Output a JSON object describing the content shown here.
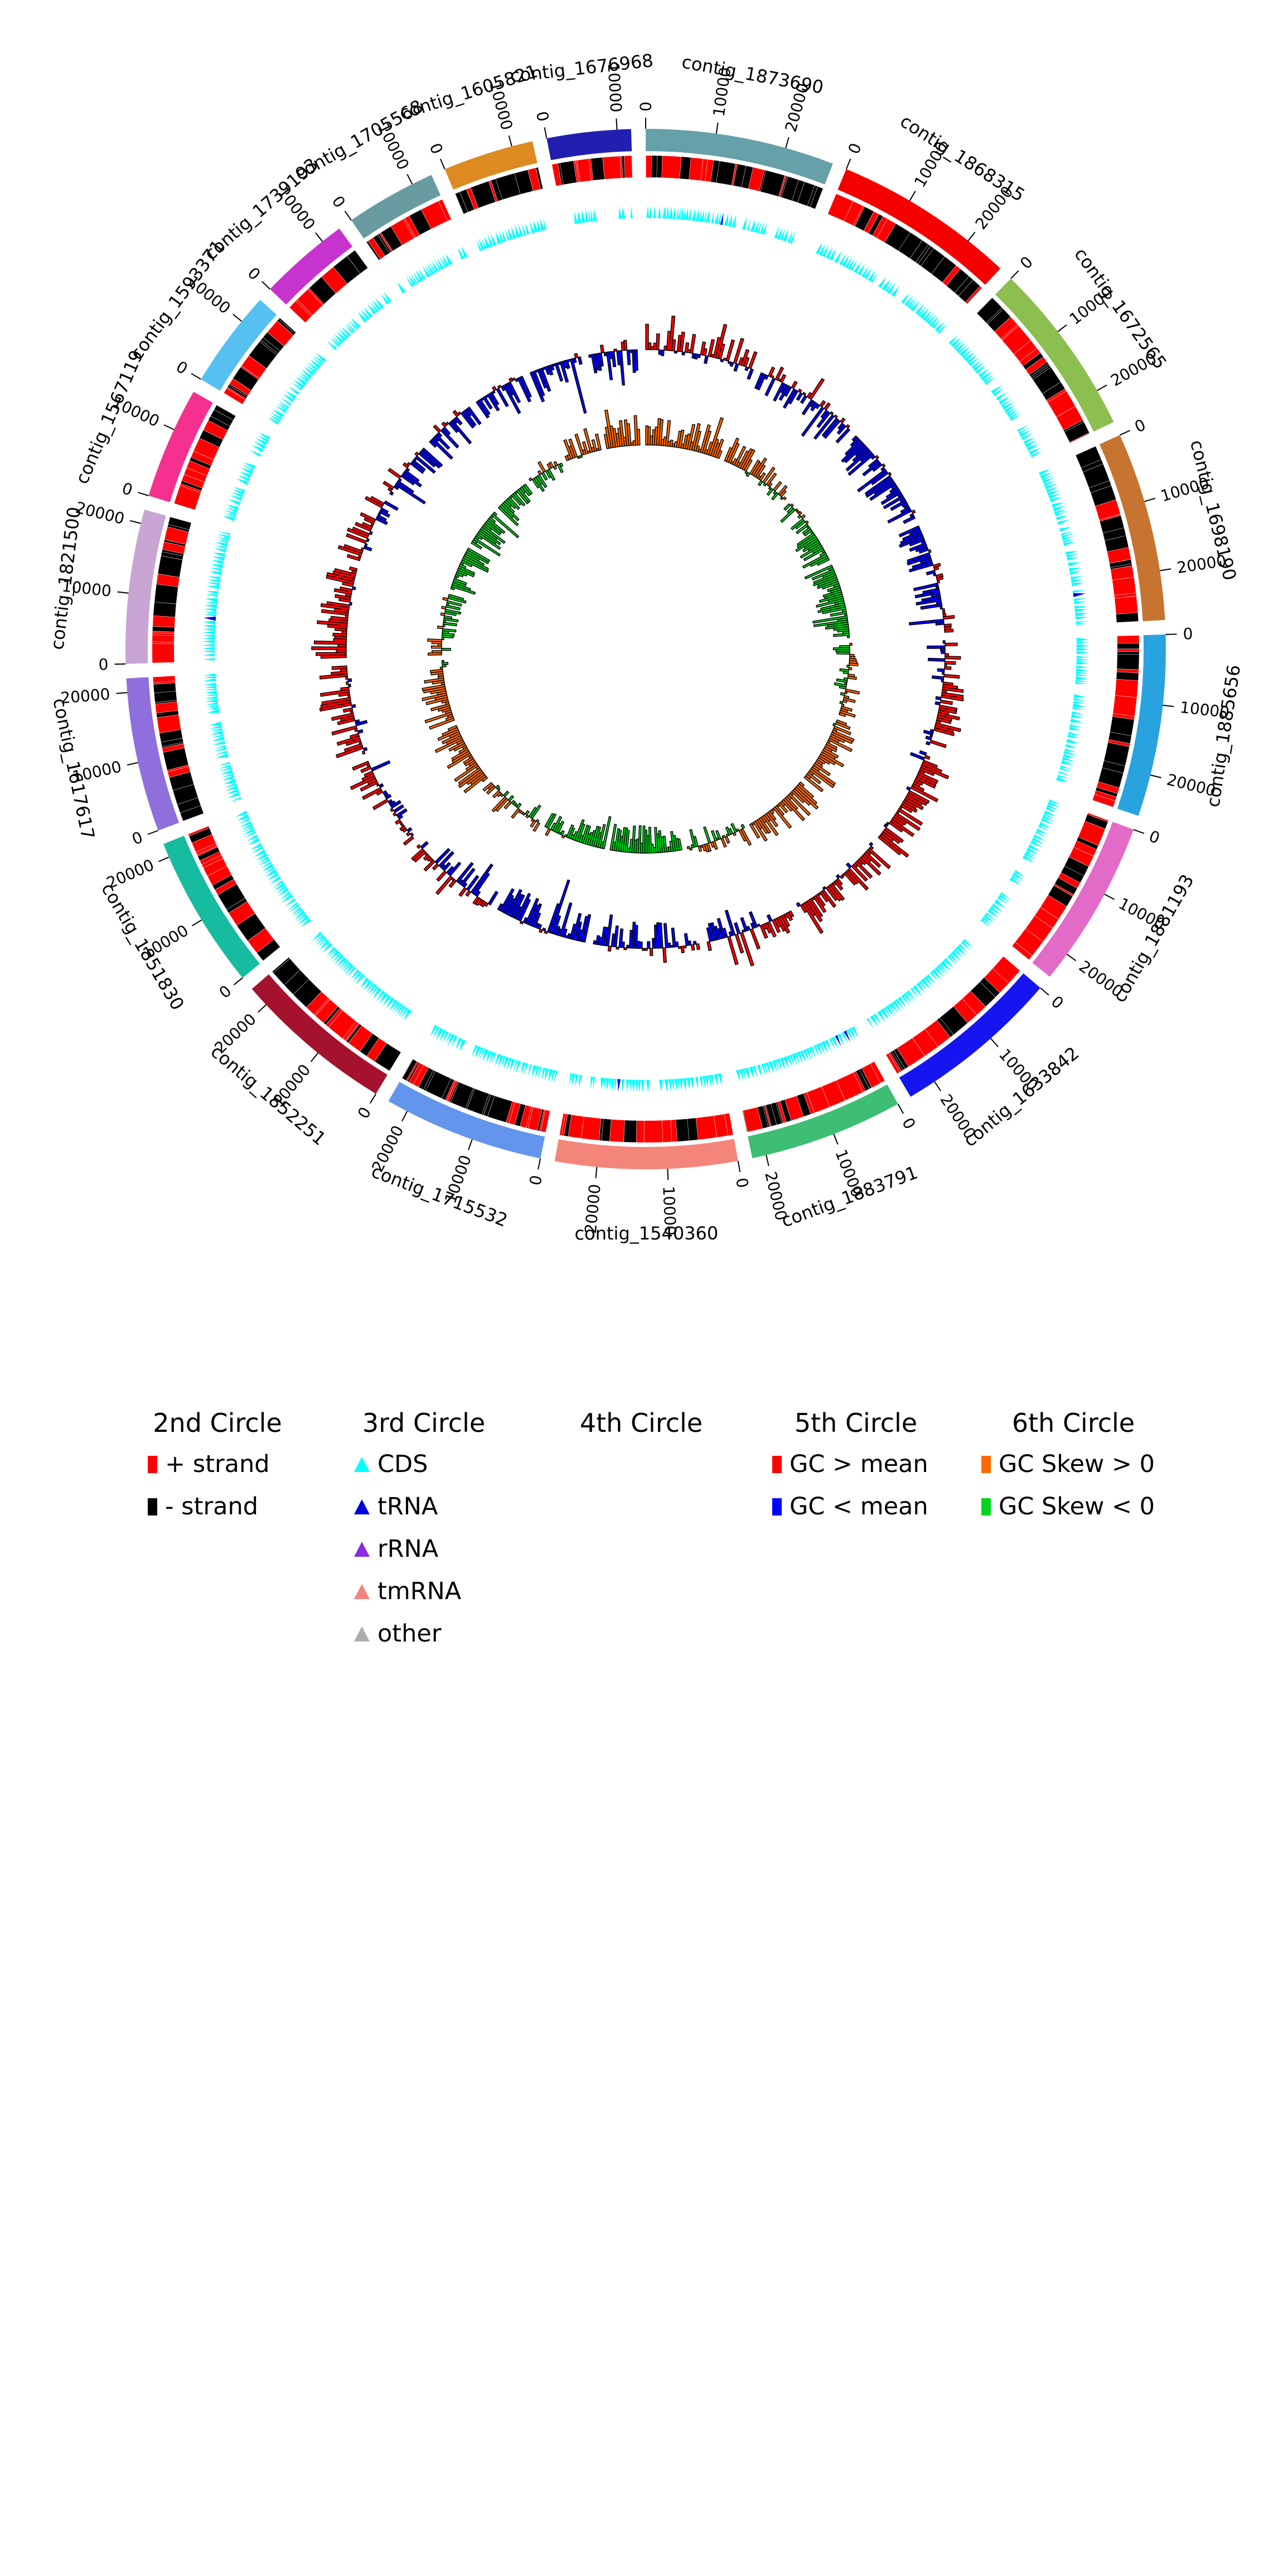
{
  "page": {
    "background": "#ffffff"
  },
  "chart_data": {
    "type": "circos",
    "title": "",
    "description": "Circular genome assembly plot: outer ring of colored contigs with bp tick marks, 2nd ring gene strand blocks, 3rd ring feature triangles (CDS/tRNA), 4th ring empty, 5th ring GC content bars vs mean, 6th ring GC skew bars.",
    "tick_unit": "bp",
    "rings": [
      {
        "position": "1st (outer)",
        "content": "contig arcs with name labels and position ticks"
      },
      {
        "position": "2nd",
        "content": "gene strand blocks",
        "colors": {
          "+ strand": "#ff0000",
          "- strand": "#000000"
        }
      },
      {
        "position": "3rd",
        "content": "feature triangles",
        "colors": {
          "CDS": "#00ffff",
          "tRNA": "#0000e1",
          "rRNA": "#8a2be2",
          "tmRNA": "#f4827d",
          "other": "#adadad"
        }
      },
      {
        "position": "4th",
        "content": "(empty)"
      },
      {
        "position": "5th",
        "content": "GC content",
        "colors": {
          "GC > mean": "#ff0000",
          "GC < mean": "#0000ff"
        }
      },
      {
        "position": "6th",
        "content": "GC skew",
        "colors": {
          "GC Skew > 0": "#ff6a00",
          "GC Skew < 0": "#00d41e"
        }
      }
    ],
    "contigs": [
      {
        "name": "contig_1873690",
        "length": 27000,
        "color": "#66A0A8",
        "ticks": [
          0,
          10000,
          20000
        ]
      },
      {
        "name": "contig_1868315",
        "length": 26000,
        "color": "#F40000",
        "ticks": [
          0,
          10000,
          20000
        ]
      },
      {
        "name": "contig_1672565",
        "length": 25000,
        "color": "#8CBE50",
        "ticks": [
          0,
          10000,
          20000
        ]
      },
      {
        "name": "contig_1698190",
        "length": 27000,
        "color": "#C67430",
        "ticks": [
          0,
          10000,
          20000
        ]
      },
      {
        "name": "contig_1885656",
        "length": 26000,
        "color": "#29A3E0",
        "ticks": [
          0,
          10000,
          20000
        ]
      },
      {
        "name": "contig_1881193",
        "length": 24000,
        "color": "#E36BC8",
        "ticks": [
          0,
          10000,
          20000
        ]
      },
      {
        "name": "contig_1633842",
        "length": 24000,
        "color": "#1515F2",
        "ticks": [
          0,
          10000,
          20000
        ]
      },
      {
        "name": "contig_1883791",
        "length": 22000,
        "color": "#3DBE74",
        "ticks": [
          0,
          10000,
          20000
        ]
      },
      {
        "name": "contig_1540360",
        "length": 26000,
        "color": "#F4857A",
        "ticks": [
          0,
          10000,
          20000
        ]
      },
      {
        "name": "contig_1715532",
        "length": 23000,
        "color": "#6495ED",
        "ticks": [
          0,
          10000,
          20000
        ]
      },
      {
        "name": "contig_1852251",
        "length": 23000,
        "color": "#A5122D",
        "ticks": [
          0,
          10000,
          20000
        ]
      },
      {
        "name": "contig_1851830",
        "length": 22000,
        "color": "#17BCA0",
        "ticks": [
          0,
          10000,
          20000
        ]
      },
      {
        "name": "contig_1617617",
        "length": 22000,
        "color": "#8F6FDC",
        "ticks": [
          0,
          10000,
          20000
        ]
      },
      {
        "name": "contig_1821500",
        "length": 22000,
        "color": "#C8A5D2",
        "ticks": [
          0,
          10000,
          20000
        ]
      },
      {
        "name": "contig_1567119",
        "length": 16000,
        "color": "#F5308F",
        "ticks": [
          0,
          10000
        ]
      },
      {
        "name": "contig_1593371",
        "length": 14000,
        "color": "#56C1F0",
        "ticks": [
          0,
          10000
        ]
      },
      {
        "name": "contig_1739193",
        "length": 13000,
        "color": "#C733CE",
        "ticks": [
          0,
          10000
        ]
      },
      {
        "name": "contig_1705568",
        "length": 13000,
        "color": "#6A9BA1",
        "ticks": [
          0,
          10000
        ]
      },
      {
        "name": "contig_1605821",
        "length": 13000,
        "color": "#DD8A20",
        "ticks": [
          0,
          10000
        ]
      },
      {
        "name": "contig_1676968",
        "length": 12000,
        "color": "#221FB0",
        "ticks": [
          0,
          10000
        ]
      }
    ]
  },
  "legend": {
    "columns": [
      {
        "title": "2nd Circle",
        "items": [
          {
            "label": "+ strand",
            "marker": "square",
            "color": "#ff0000"
          },
          {
            "label": "- strand",
            "marker": "square",
            "color": "#000000"
          }
        ]
      },
      {
        "title": "3rd Circle",
        "items": [
          {
            "label": "CDS",
            "marker": "triangle",
            "color": "#00ffff"
          },
          {
            "label": "tRNA",
            "marker": "triangle",
            "color": "#0000e1"
          },
          {
            "label": "rRNA",
            "marker": "triangle",
            "color": "#8a2be2"
          },
          {
            "label": "tmRNA",
            "marker": "triangle",
            "color": "#f4827d"
          },
          {
            "label": "other",
            "marker": "triangle",
            "color": "#adadad"
          }
        ]
      },
      {
        "title": "4th Circle",
        "items": []
      },
      {
        "title": "5th Circle",
        "items": [
          {
            "label": "GC > mean",
            "marker": "square",
            "color": "#ff0000"
          },
          {
            "label": "GC < mean",
            "marker": "square",
            "color": "#0000ff"
          }
        ]
      },
      {
        "title": "6th Circle",
        "items": [
          {
            "label": "GC Skew > 0",
            "marker": "square",
            "color": "#ff6a00"
          },
          {
            "label": "GC Skew < 0",
            "marker": "square",
            "color": "#00d41e"
          }
        ]
      }
    ]
  }
}
